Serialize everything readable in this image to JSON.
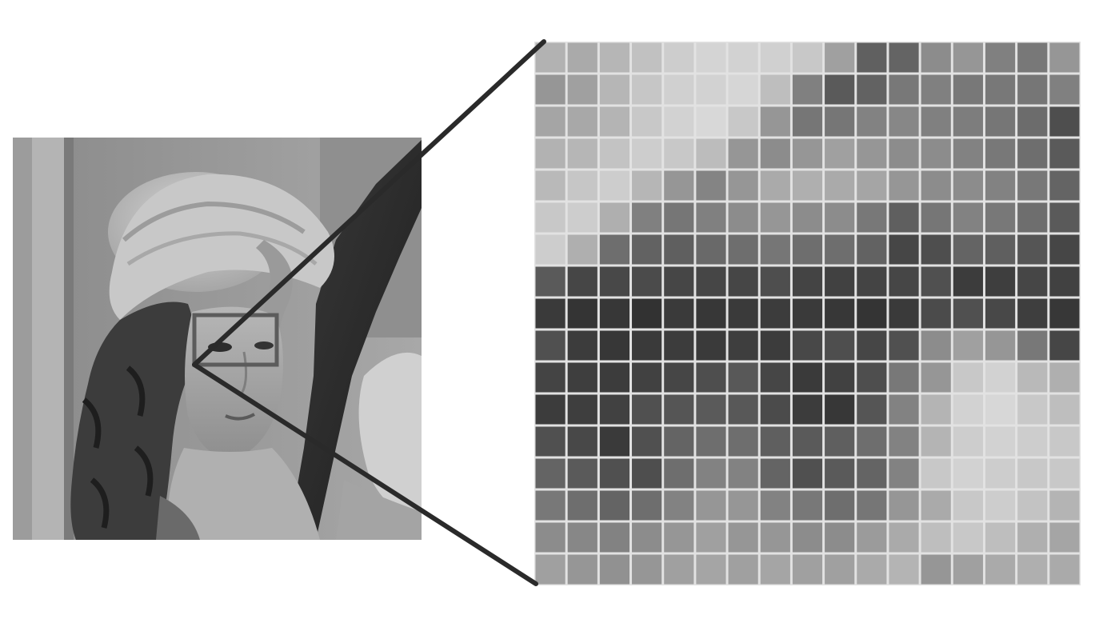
{
  "diagram": {
    "colors": {
      "background": "#ffffff",
      "grid_line": "#e2e2e2",
      "connector": "#2a2a2a",
      "roi_box": "#5c5c5c"
    },
    "pixel_grid": {
      "rows": 17,
      "cols": 17,
      "gray_levels": [
        [
          178,
          170,
          182,
          193,
          205,
          212,
          210,
          208,
          200,
          160,
          96,
          100,
          140,
          150,
          128,
          120,
          150
        ],
        [
          150,
          160,
          182,
          198,
          208,
          210,
          214,
          190,
          128,
          90,
          98,
          120,
          128,
          120,
          120,
          118,
          128
        ],
        [
          165,
          168,
          180,
          200,
          210,
          216,
          200,
          150,
          118,
          118,
          130,
          135,
          128,
          125,
          118,
          108,
          78
        ],
        [
          178,
          182,
          195,
          205,
          200,
          188,
          150,
          140,
          150,
          160,
          150,
          140,
          140,
          130,
          120,
          110,
          90
        ],
        [
          185,
          198,
          205,
          182,
          150,
          132,
          150,
          170,
          175,
          170,
          165,
          150,
          140,
          140,
          130,
          120,
          100
        ],
        [
          200,
          205,
          175,
          128,
          118,
          128,
          140,
          150,
          140,
          140,
          120,
          95,
          118,
          130,
          120,
          110,
          90
        ],
        [
          205,
          175,
          110,
          98,
          95,
          105,
          110,
          118,
          110,
          110,
          98,
          70,
          78,
          100,
          95,
          85,
          70
        ],
        [
          90,
          70,
          72,
          75,
          70,
          70,
          70,
          78,
          68,
          65,
          68,
          70,
          80,
          60,
          62,
          70,
          65
        ],
        [
          58,
          52,
          55,
          50,
          58,
          55,
          58,
          60,
          58,
          55,
          52,
          58,
          75,
          80,
          72,
          62,
          55
        ],
        [
          80,
          60,
          55,
          58,
          60,
          58,
          62,
          60,
          72,
          78,
          70,
          80,
          140,
          160,
          150,
          120,
          70
        ],
        [
          68,
          62,
          60,
          65,
          70,
          78,
          88,
          70,
          58,
          65,
          78,
          120,
          150,
          200,
          210,
          185,
          175
        ],
        [
          60,
          62,
          65,
          80,
          85,
          90,
          88,
          75,
          60,
          55,
          85,
          130,
          180,
          210,
          215,
          200,
          190
        ],
        [
          80,
          72,
          58,
          80,
          100,
          110,
          110,
          95,
          90,
          95,
          110,
          130,
          180,
          205,
          210,
          205,
          200
        ],
        [
          100,
          90,
          80,
          78,
          110,
          130,
          130,
          100,
          80,
          90,
          100,
          130,
          200,
          210,
          205,
          200,
          200
        ],
        [
          120,
          110,
          100,
          110,
          130,
          150,
          150,
          130,
          120,
          110,
          118,
          150,
          170,
          200,
          205,
          195,
          180
        ],
        [
          140,
          135,
          130,
          140,
          150,
          160,
          150,
          150,
          140,
          140,
          155,
          170,
          190,
          200,
          190,
          175,
          165
        ],
        [
          160,
          150,
          145,
          150,
          160,
          165,
          160,
          165,
          160,
          160,
          170,
          180,
          150,
          160,
          170,
          175,
          170
        ]
      ]
    },
    "photo": {
      "subject": "portrait-photo"
    }
  }
}
